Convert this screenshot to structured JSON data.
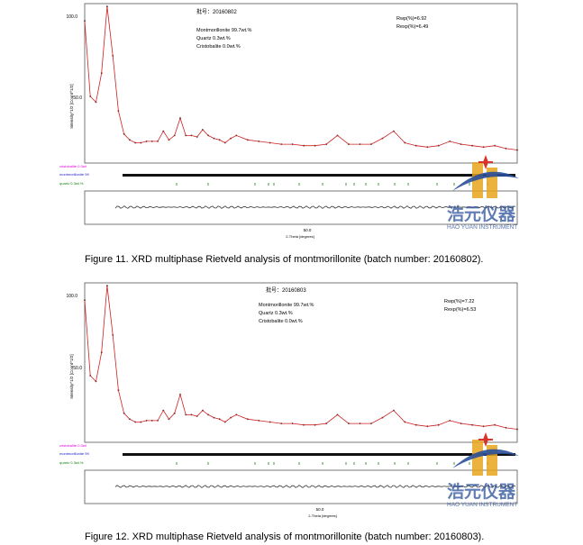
{
  "figures": [
    {
      "caption": "Figure 11. XRD multiphase Rietveld analysis of montmorillonite (batch number: 20160802).",
      "batch_label": "批号：20160802",
      "composition": [
        "Montmorillonite 99.7wt.%",
        "Quartz  0.3wt.%",
        "Cristobalite 0.0wt.%"
      ],
      "rwp": "Rwp(%)=6.92",
      "rexp": "Rexp(%)=6.49",
      "ylabel": "Intensity^1/2 [Count^1/2]",
      "xlabel": "2-Theta [degrees]",
      "ytick_labels": [
        "100.0",
        "50.0"
      ],
      "xtick_label": "50.0",
      "phase_labels": [
        "cristobalite 0.0wt",
        "montmorillonite 99",
        "quartz 0.3wt.%"
      ],
      "phase_colors": [
        "#e000e0",
        "#2020d0",
        "#108010"
      ],
      "chart_data": {
        "type": "line",
        "title": "",
        "xlabel": "2-Theta [degrees]",
        "ylabel": "Intensity^1/2 [Count^1/2]",
        "xlim": [
          3,
          80
        ],
        "ylim": [
          0,
          110
        ],
        "series": [
          {
            "name": "",
            "x": [
              3,
              4,
              5,
              6,
              7,
              8,
              9,
              10,
              11,
              12,
              13,
              14,
              15,
              16,
              17,
              18,
              19,
              20,
              21,
              22,
              23,
              24,
              25,
              26,
              27,
              28,
              29,
              30,
              32,
              34,
              36,
              38,
              40,
              42,
              44,
              46,
              48,
              50,
              52,
              54,
              56,
              58,
              60,
              62,
              64,
              66,
              68,
              70,
              72,
              74,
              76,
              78,
              80
            ],
            "y": [
              98,
              46,
              42,
              62,
              108,
              74,
              36,
              20,
              16,
              14,
              14,
              15,
              15,
              15,
              22,
              16,
              19,
              31,
              19,
              19,
              18,
              23,
              19,
              17,
              16,
              14,
              17,
              19,
              16,
              15,
              14,
              13,
              13,
              12,
              12,
              13,
              19,
              13,
              13,
              13,
              17,
              22,
              14,
              12,
              11,
              12,
              15,
              13,
              12,
              11,
              12,
              10,
              9
            ]
          }
        ]
      }
    },
    {
      "caption": "Figure 12. XRD multiphase Rietveld analysis of montmorillonite (batch number: 20160803).",
      "batch_label": "批号：20160803",
      "composition": [
        "Montmorillonite 99.7wt.%",
        "Quartz  0.3wt.%",
        "Cristobalite 0.0wt.%"
      ],
      "rwp": "Rwp(%)=7.22",
      "rexp": "Rexp(%)=6.53",
      "ylabel": "Intensity^1/2 [Count^1/2]",
      "xlabel": "2-Theta [degrees]",
      "ytick_labels": [
        "100.0",
        "50.0"
      ],
      "xtick_label": "50.0",
      "phase_labels": [
        "cristobalite 0.0wt",
        "montmorillonite 99",
        "quartz 0.3wt.%"
      ],
      "phase_colors": [
        "#e000e0",
        "#2020d0",
        "#108010"
      ],
      "chart_data": {
        "type": "line",
        "title": "",
        "xlabel": "2-Theta [degrees]",
        "ylabel": "Intensity^1/2 [Count^1/2]",
        "xlim": [
          3,
          80
        ],
        "ylim": [
          0,
          110
        ],
        "series": [
          {
            "name": "",
            "x": [
              3,
              4,
              5,
              6,
              7,
              8,
              9,
              10,
              11,
              12,
              13,
              14,
              15,
              16,
              17,
              18,
              19,
              20,
              21,
              22,
              23,
              24,
              25,
              26,
              27,
              28,
              29,
              30,
              32,
              34,
              36,
              38,
              40,
              42,
              44,
              46,
              48,
              50,
              52,
              54,
              56,
              58,
              60,
              62,
              64,
              66,
              68,
              70,
              72,
              74,
              76,
              78,
              80
            ],
            "y": [
              98,
              46,
              42,
              62,
              108,
              74,
              36,
              20,
              16,
              14,
              14,
              15,
              15,
              15,
              22,
              16,
              20,
              33,
              19,
              19,
              18,
              22,
              19,
              17,
              16,
              14,
              17,
              19,
              16,
              15,
              14,
              13,
              13,
              12,
              12,
              13,
              19,
              13,
              13,
              13,
              17,
              22,
              14,
              12,
              11,
              12,
              15,
              13,
              12,
              11,
              12,
              10,
              9
            ]
          }
        ]
      }
    }
  ],
  "watermark": {
    "text_cn": "浩元仪器",
    "text_en": "HAO YUAN INSTRUMENT",
    "colors": {
      "blue": "#2a4f9a",
      "red": "#d9342b",
      "gold": "#e8a51c"
    }
  },
  "colors": {
    "calc_line": "#cc2222",
    "obs_points": "#222222",
    "diff": "#333333"
  }
}
